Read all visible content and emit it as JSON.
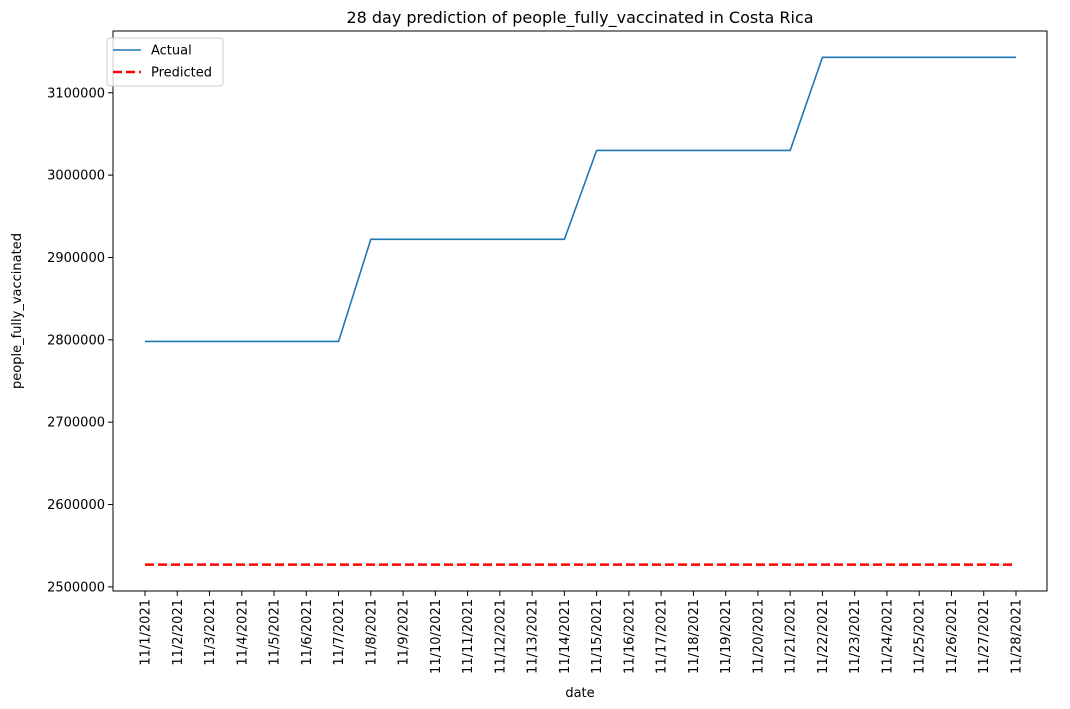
{
  "chart_data": {
    "type": "line",
    "title": "28 day prediction of people_fully_vaccinated in Costa Rica",
    "xlabel": "date",
    "ylabel": "people_fully_vaccinated",
    "categories": [
      "11/1/2021",
      "11/2/2021",
      "11/3/2021",
      "11/4/2021",
      "11/5/2021",
      "11/6/2021",
      "11/7/2021",
      "11/8/2021",
      "11/9/2021",
      "11/10/2021",
      "11/11/2021",
      "11/12/2021",
      "11/13/2021",
      "11/14/2021",
      "11/15/2021",
      "11/16/2021",
      "11/17/2021",
      "11/18/2021",
      "11/19/2021",
      "11/20/2021",
      "11/21/2021",
      "11/22/2021",
      "11/23/2021",
      "11/24/2021",
      "11/25/2021",
      "11/26/2021",
      "11/27/2021",
      "11/28/2021"
    ],
    "ylim": [
      2495000,
      3175000
    ],
    "yticks": [
      2500000,
      2600000,
      2700000,
      2800000,
      2900000,
      3000000,
      3100000
    ],
    "ytick_labels": [
      "2500000",
      "2600000",
      "2700000",
      "2800000",
      "2900000",
      "3000000",
      "3100000"
    ],
    "grid": false,
    "legend_position": "top-left",
    "series": [
      {
        "name": "Actual",
        "color": "#1f77b4",
        "style": "solid",
        "values": [
          2798000,
          2798000,
          2798000,
          2798000,
          2798000,
          2798000,
          2798000,
          2922000,
          2922000,
          2922000,
          2922000,
          2922000,
          2922000,
          2922000,
          3030000,
          3030000,
          3030000,
          3030000,
          3030000,
          3030000,
          3030000,
          3143000,
          3143000,
          3143000,
          3143000,
          3143000,
          3143000,
          3143000
        ]
      },
      {
        "name": "Predicted",
        "color": "#ff0000",
        "style": "dashed",
        "values": [
          2527000,
          2527000,
          2527000,
          2527000,
          2527000,
          2527000,
          2527000,
          2527000,
          2527000,
          2527000,
          2527000,
          2527000,
          2527000,
          2527000,
          2527000,
          2527000,
          2527000,
          2527000,
          2527000,
          2527000,
          2527000,
          2527000,
          2527000,
          2527000,
          2527000,
          2527000,
          2527000,
          2527000
        ]
      }
    ]
  }
}
